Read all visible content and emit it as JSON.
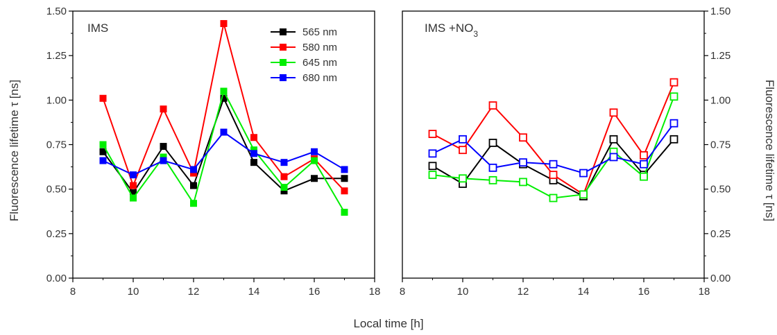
{
  "chart_data": [
    {
      "type": "line",
      "panel_title": "IMS",
      "panel_title_sub": "",
      "marker": "filled-square",
      "xlabel": "Local time [h]",
      "ylabel": "Fluorescence lifetime τ [ns]",
      "xlim": [
        8,
        18
      ],
      "ylim": [
        0,
        1.5
      ],
      "x_ticks": [
        "8",
        "10",
        "12",
        "14",
        "16",
        "18"
      ],
      "y_ticks": [
        "0.00",
        "0.25",
        "0.50",
        "0.75",
        "1.00",
        "1.25",
        "1.50"
      ],
      "x": [
        9,
        10,
        11,
        12,
        13,
        14,
        15,
        16,
        17
      ],
      "legend_position": "top-right",
      "series": [
        {
          "name": "565 nm",
          "color": "#000000",
          "values": [
            0.71,
            0.48,
            0.74,
            0.52,
            1.01,
            0.65,
            0.49,
            0.56,
            0.56
          ]
        },
        {
          "name": "580 nm",
          "color": "#ff0000",
          "values": [
            1.01,
            0.52,
            0.95,
            0.59,
            1.43,
            0.79,
            0.57,
            0.67,
            0.49
          ]
        },
        {
          "name": "645 nm",
          "color": "#00ee00",
          "values": [
            0.75,
            0.45,
            0.68,
            0.42,
            1.05,
            0.72,
            0.51,
            0.66,
            0.37
          ]
        },
        {
          "name": "680 nm",
          "color": "#0000ff",
          "values": [
            0.66,
            0.58,
            0.66,
            0.61,
            0.82,
            0.7,
            0.65,
            0.71,
            0.61
          ]
        }
      ]
    },
    {
      "type": "line",
      "panel_title": "IMS +NO",
      "panel_title_sub": "3",
      "marker": "open-square",
      "xlabel": "Local time [h]",
      "ylabel": "Fluorescence lifetime τ [ns]",
      "xlim": [
        8,
        18
      ],
      "ylim": [
        0,
        1.5
      ],
      "x_ticks": [
        "8",
        "10",
        "12",
        "14",
        "16",
        "18"
      ],
      "y_ticks": [
        "0.00",
        "0.25",
        "0.50",
        "0.75",
        "1.00",
        "1.25",
        "1.50"
      ],
      "x": [
        9,
        10,
        11,
        12,
        13,
        14,
        15,
        16,
        17
      ],
      "series": [
        {
          "color": "#000000",
          "values": [
            0.63,
            0.53,
            0.76,
            0.64,
            0.55,
            0.46,
            0.78,
            0.58,
            0.78
          ]
        },
        {
          "color": "#ff0000",
          "values": [
            0.81,
            0.72,
            0.97,
            0.79,
            0.58,
            0.47,
            0.93,
            0.69,
            1.1
          ]
        },
        {
          "color": "#00ee00",
          "values": [
            0.58,
            0.56,
            0.55,
            0.54,
            0.45,
            0.47,
            0.71,
            0.57,
            1.02
          ]
        },
        {
          "color": "#0000ff",
          "values": [
            0.7,
            0.78,
            0.62,
            0.65,
            0.64,
            0.59,
            0.68,
            0.64,
            0.87
          ]
        }
      ]
    }
  ]
}
